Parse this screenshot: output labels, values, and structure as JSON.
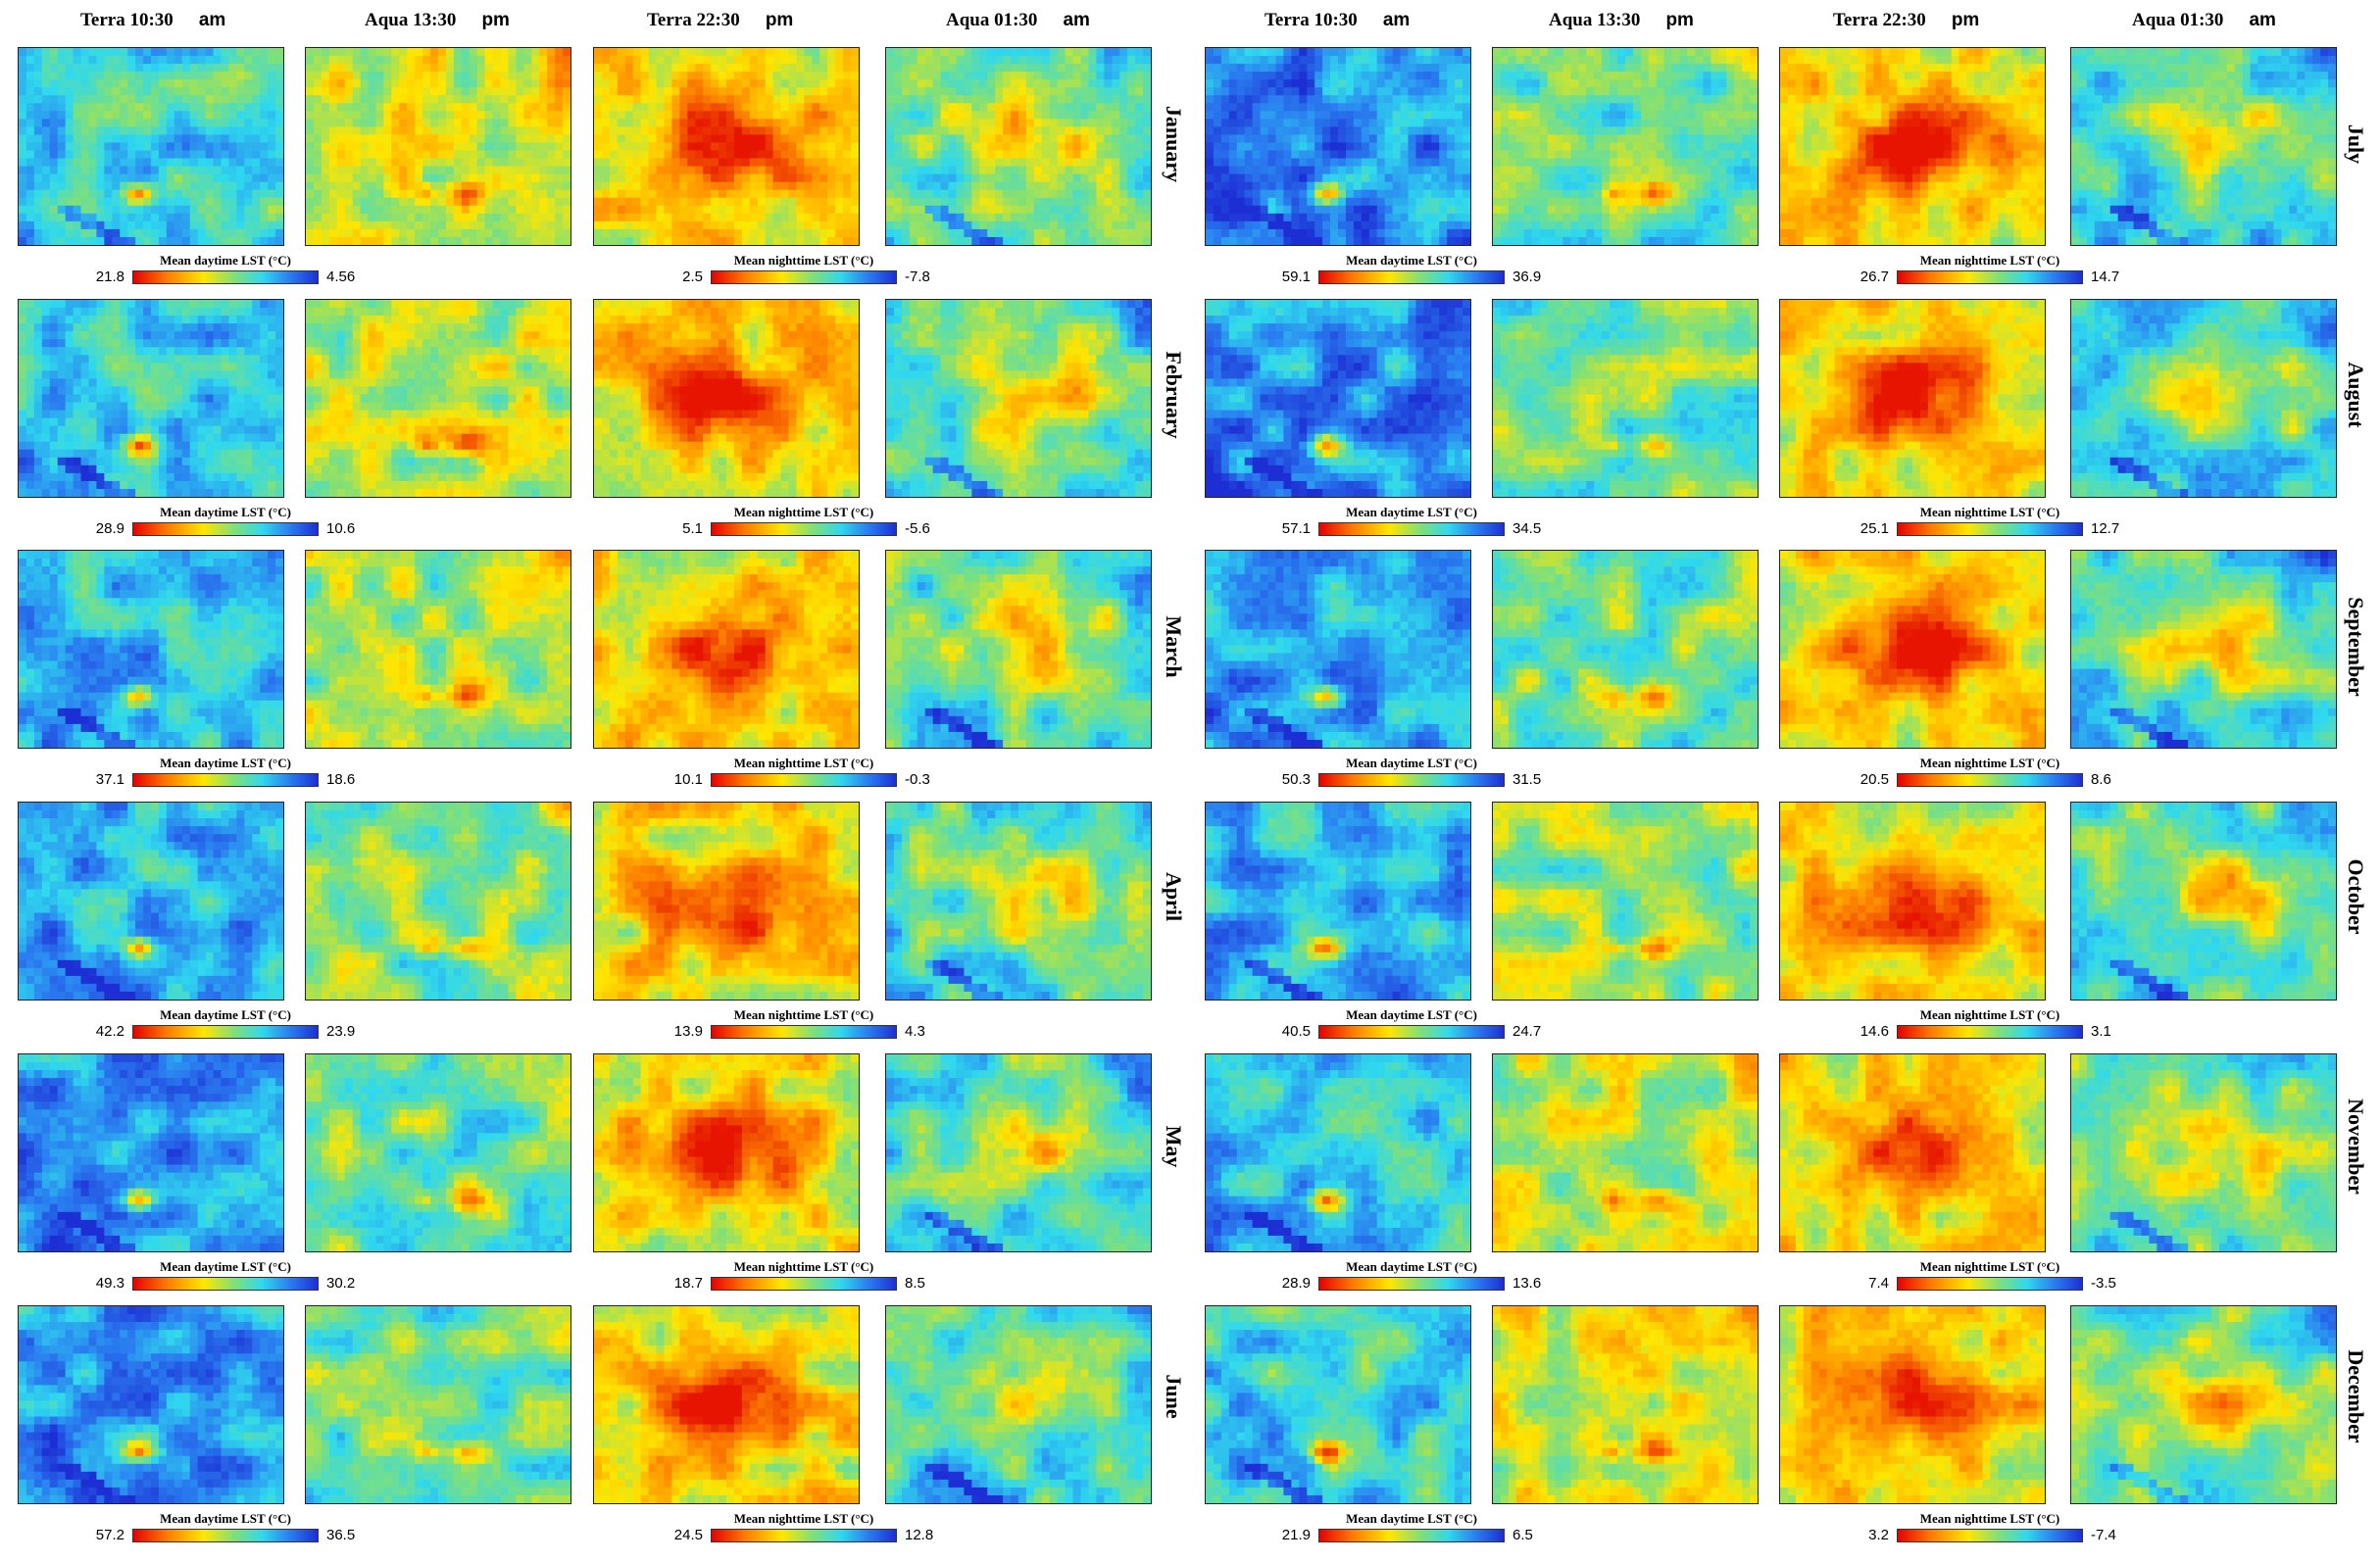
{
  "headers": [
    {
      "time": "Terra 10:30",
      "ap": "am"
    },
    {
      "time": "Aqua 13:30",
      "ap": "pm"
    },
    {
      "time": "Terra 22:30",
      "ap": "pm"
    },
    {
      "time": "Aqua 01:30",
      "ap": "am"
    },
    {
      "time": "Terra 10:30",
      "ap": "am"
    },
    {
      "time": "Aqua 13:30",
      "ap": "pm"
    },
    {
      "time": "Terra 22:30",
      "ap": "pm"
    },
    {
      "time": "Aqua 01:30",
      "ap": "am"
    }
  ],
  "months_left": [
    "January",
    "February",
    "March",
    "April",
    "May",
    "June"
  ],
  "months_right": [
    "July",
    "August",
    "September",
    "October",
    "November",
    "December"
  ],
  "colorbars": [
    {
      "title": "Mean daytime LST (°C)",
      "min": "21.8",
      "max": "4.56"
    },
    {
      "title": "Mean nighttime LST (°C)",
      "min": "2.5",
      "max": "-7.8"
    },
    {
      "title": "Mean daytime LST (°C)",
      "min": "59.1",
      "max": "36.9"
    },
    {
      "title": "Mean nighttime LST (°C)",
      "min": "26.7",
      "max": "14.7"
    },
    {
      "title": "Mean daytime LST (°C)",
      "min": "28.9",
      "max": "10.6"
    },
    {
      "title": "Mean nighttime LST (°C)",
      "min": "5.1",
      "max": "-5.6"
    },
    {
      "title": "Mean daytime LST (°C)",
      "min": "57.1",
      "max": "34.5"
    },
    {
      "title": "Mean nighttime LST (°C)",
      "min": "25.1",
      "max": "12.7"
    },
    {
      "title": "Mean daytime LST (°C)",
      "min": "37.1",
      "max": "18.6"
    },
    {
      "title": "Mean nighttime LST (°C)",
      "min": "10.1",
      "max": "-0.3"
    },
    {
      "title": "Mean daytime LST (°C)",
      "min": "50.3",
      "max": "31.5"
    },
    {
      "title": "Mean nighttime LST (°C)",
      "min": "20.5",
      "max": "8.6"
    },
    {
      "title": "Mean daytime LST (°C)",
      "min": "42.2",
      "max": "23.9"
    },
    {
      "title": "Mean nighttime LST (°C)",
      "min": "13.9",
      "max": "4.3"
    },
    {
      "title": "Mean daytime LST (°C)",
      "min": "40.5",
      "max": "24.7"
    },
    {
      "title": "Mean nighttime LST (°C)",
      "min": "14.6",
      "max": "3.1"
    },
    {
      "title": "Mean daytime LST (°C)",
      "min": "49.3",
      "max": "30.2"
    },
    {
      "title": "Mean nighttime LST (°C)",
      "min": "18.7",
      "max": "8.5"
    },
    {
      "title": "Mean daytime LST (°C)",
      "min": "28.9",
      "max": "13.6"
    },
    {
      "title": "Mean nighttime LST (°C)",
      "min": "7.4",
      "max": "-3.5"
    },
    {
      "title": "Mean daytime LST (°C)",
      "min": "57.2",
      "max": "36.5"
    },
    {
      "title": "Mean nighttime LST (°C)",
      "min": "24.5",
      "max": "12.8"
    },
    {
      "title": "Mean daytime LST (°C)",
      "min": "21.9",
      "max": "6.5"
    },
    {
      "title": "Mean nighttime LST (°C)",
      "min": "3.2",
      "max": "-7.4"
    }
  ],
  "colors": {
    "hot": "#e60000",
    "warm": "#ffe600",
    "cool": "#2fd9ee",
    "cold": "#1d2fd4"
  }
}
